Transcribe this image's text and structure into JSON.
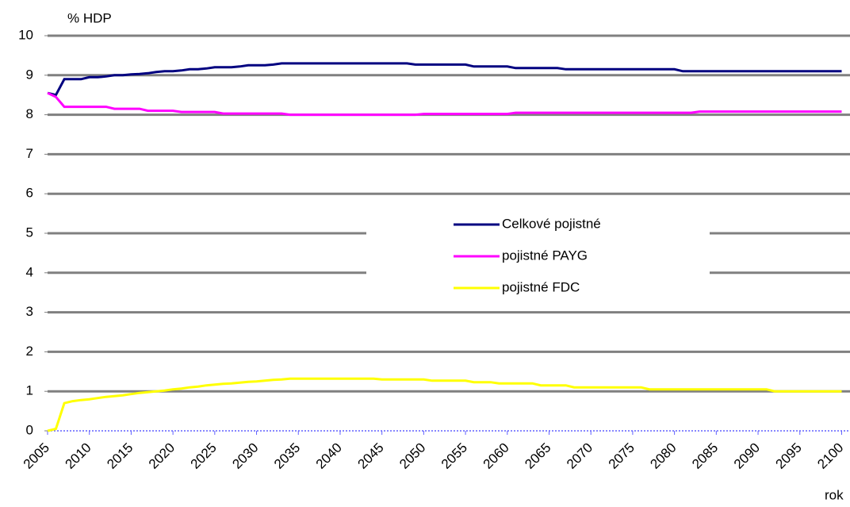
{
  "chart_data": {
    "type": "line",
    "y_label": "% HDP",
    "x_label": "rok",
    "x": [
      2005,
      2006,
      2007,
      2008,
      2009,
      2010,
      2011,
      2012,
      2013,
      2014,
      2015,
      2016,
      2017,
      2018,
      2019,
      2020,
      2021,
      2022,
      2023,
      2024,
      2025,
      2026,
      2027,
      2028,
      2029,
      2030,
      2031,
      2032,
      2033,
      2034,
      2035,
      2036,
      2037,
      2038,
      2039,
      2040,
      2041,
      2042,
      2043,
      2044,
      2045,
      2046,
      2047,
      2048,
      2049,
      2050,
      2051,
      2052,
      2053,
      2054,
      2055,
      2056,
      2057,
      2058,
      2059,
      2060,
      2061,
      2062,
      2063,
      2064,
      2065,
      2066,
      2067,
      2068,
      2069,
      2070,
      2071,
      2072,
      2073,
      2074,
      2075,
      2076,
      2077,
      2078,
      2079,
      2080,
      2081,
      2082,
      2083,
      2084,
      2085,
      2086,
      2087,
      2088,
      2089,
      2090,
      2091,
      2092,
      2093,
      2094,
      2095,
      2096,
      2097,
      2098,
      2099,
      2100
    ],
    "series": [
      {
        "name": "Celkové pojistné",
        "color": "#000080",
        "values": [
          8.55,
          8.5,
          8.9,
          8.9,
          8.9,
          8.95,
          8.95,
          8.97,
          9.0,
          9.0,
          9.02,
          9.03,
          9.05,
          9.08,
          9.1,
          9.1,
          9.12,
          9.15,
          9.15,
          9.17,
          9.2,
          9.2,
          9.2,
          9.22,
          9.25,
          9.25,
          9.25,
          9.27,
          9.3,
          9.3,
          9.3,
          9.3,
          9.3,
          9.3,
          9.3,
          9.3,
          9.3,
          9.3,
          9.3,
          9.3,
          9.3,
          9.3,
          9.3,
          9.3,
          9.27,
          9.27,
          9.27,
          9.27,
          9.27,
          9.27,
          9.27,
          9.22,
          9.22,
          9.22,
          9.22,
          9.22,
          9.18,
          9.18,
          9.18,
          9.18,
          9.18,
          9.18,
          9.15,
          9.15,
          9.15,
          9.15,
          9.15,
          9.15,
          9.15,
          9.15,
          9.15,
          9.15,
          9.15,
          9.15,
          9.15,
          9.15,
          9.1,
          9.1,
          9.1,
          9.1,
          9.1,
          9.1,
          9.1,
          9.1,
          9.1,
          9.1,
          9.1,
          9.1,
          9.1,
          9.1,
          9.1,
          9.1,
          9.1,
          9.1,
          9.1,
          9.1
        ]
      },
      {
        "name": "pojistné PAYG",
        "color": "#ff00ff",
        "values": [
          8.55,
          8.45,
          8.2,
          8.2,
          8.2,
          8.2,
          8.2,
          8.2,
          8.15,
          8.15,
          8.15,
          8.15,
          8.1,
          8.1,
          8.1,
          8.1,
          8.07,
          8.07,
          8.07,
          8.07,
          8.07,
          8.03,
          8.03,
          8.03,
          8.03,
          8.03,
          8.03,
          8.03,
          8.03,
          8.0,
          8.0,
          8.0,
          8.0,
          8.0,
          8.0,
          8.0,
          8.0,
          8.0,
          8.0,
          8.0,
          8.0,
          8.0,
          8.0,
          8.0,
          8.0,
          8.02,
          8.02,
          8.02,
          8.02,
          8.02,
          8.02,
          8.02,
          8.02,
          8.02,
          8.02,
          8.02,
          8.05,
          8.05,
          8.05,
          8.05,
          8.05,
          8.05,
          8.05,
          8.05,
          8.05,
          8.05,
          8.05,
          8.05,
          8.05,
          8.05,
          8.05,
          8.05,
          8.05,
          8.05,
          8.05,
          8.05,
          8.05,
          8.05,
          8.08,
          8.08,
          8.08,
          8.08,
          8.08,
          8.08,
          8.08,
          8.08,
          8.08,
          8.08,
          8.08,
          8.08,
          8.08,
          8.08,
          8.08,
          8.08,
          8.08,
          8.08
        ]
      },
      {
        "name": "pojistné FDC",
        "color": "#ffff00",
        "values": [
          0,
          0.05,
          0.7,
          0.75,
          0.78,
          0.8,
          0.83,
          0.86,
          0.88,
          0.9,
          0.93,
          0.96,
          0.98,
          1.0,
          1.02,
          1.05,
          1.07,
          1.1,
          1.12,
          1.15,
          1.17,
          1.19,
          1.2,
          1.22,
          1.24,
          1.25,
          1.27,
          1.29,
          1.3,
          1.32,
          1.32,
          1.32,
          1.32,
          1.32,
          1.32,
          1.32,
          1.32,
          1.32,
          1.32,
          1.32,
          1.3,
          1.3,
          1.3,
          1.3,
          1.3,
          1.3,
          1.27,
          1.27,
          1.27,
          1.27,
          1.27,
          1.23,
          1.23,
          1.23,
          1.2,
          1.2,
          1.2,
          1.2,
          1.2,
          1.15,
          1.15,
          1.15,
          1.15,
          1.1,
          1.1,
          1.1,
          1.1,
          1.1,
          1.1,
          1.1,
          1.1,
          1.1,
          1.05,
          1.05,
          1.05,
          1.05,
          1.05,
          1.05,
          1.05,
          1.05,
          1.05,
          1.05,
          1.05,
          1.05,
          1.05,
          1.05,
          1.05,
          1.0,
          1.0,
          1.0,
          1.0,
          1.0,
          1.0,
          1.0,
          1.0,
          1.0
        ]
      }
    ],
    "xlim": [
      2005,
      2101
    ],
    "xticks": [
      2005,
      2010,
      2015,
      2020,
      2025,
      2030,
      2035,
      2040,
      2045,
      2050,
      2055,
      2060,
      2065,
      2070,
      2075,
      2080,
      2085,
      2090,
      2095,
      2100
    ],
    "ylim": [
      0,
      10
    ],
    "yticks": [
      0,
      1,
      2,
      3,
      4,
      5,
      6,
      7,
      8,
      9,
      10
    ],
    "grid": true,
    "legend": "center"
  }
}
